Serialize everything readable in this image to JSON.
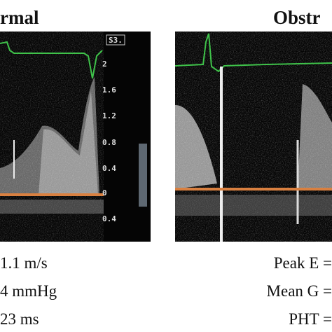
{
  "panels": [
    {
      "title": "rmal",
      "scale_box": "S3.",
      "scale": [
        "2",
        "1.6",
        "1.2",
        "0.8",
        "0.4",
        "0",
        "0.4"
      ],
      "measurements": [
        "1.1 m/s",
        "4 mmHg",
        "23 ms"
      ]
    },
    {
      "title": "Obstr",
      "measurements": [
        "Peak E =",
        "Mean G =",
        "PHT ="
      ]
    }
  ]
}
